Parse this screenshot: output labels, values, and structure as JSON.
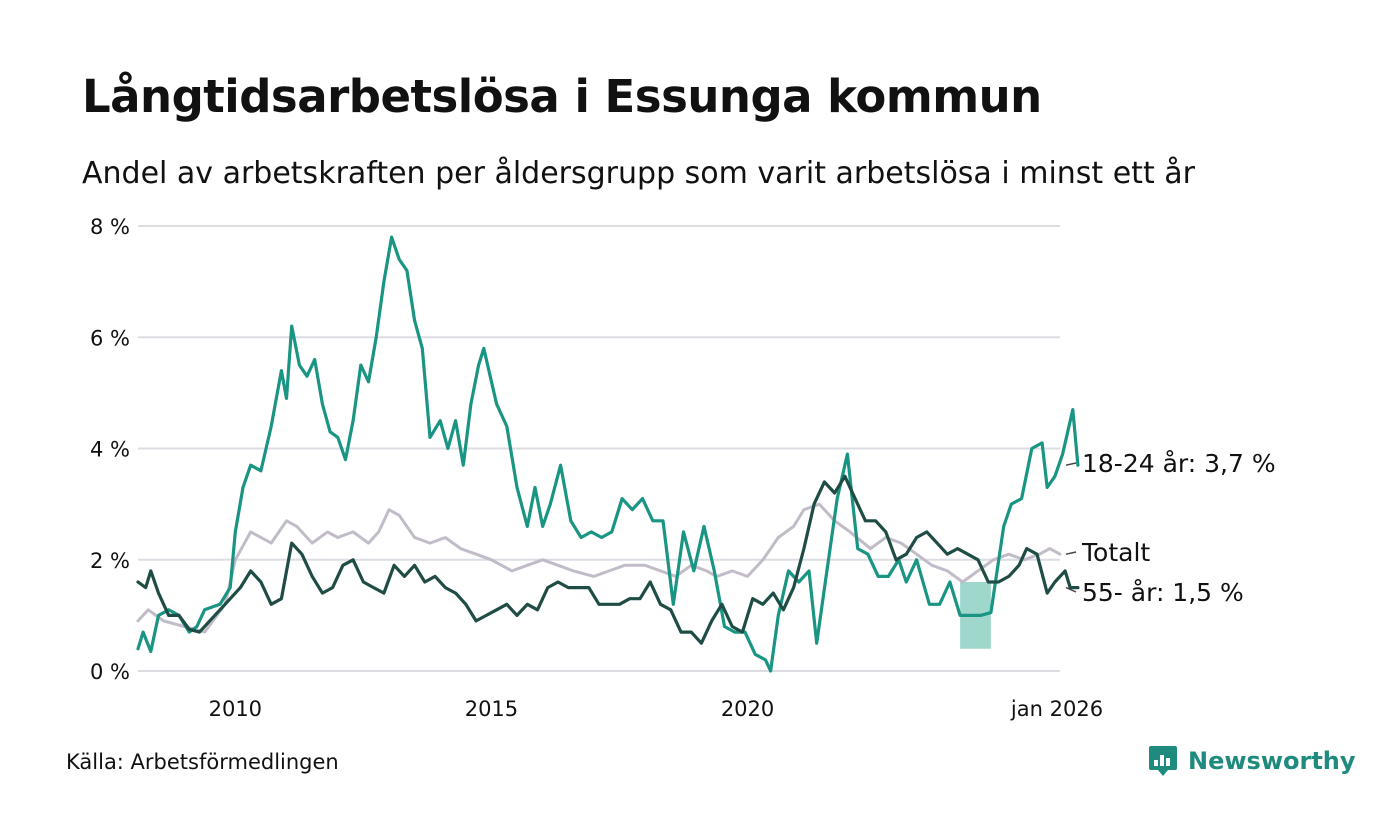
{
  "title": "Långtidsarbetslösa i Essunga kommun",
  "subtitle": "Andel av arbetskraften per åldersgrupp som varit arbetslösa i minst ett år",
  "source": "Källa: Arbetsförmedlingen",
  "brand": "Newsworthy",
  "colors": {
    "young": "#1a9583",
    "total": "#c2bcc8",
    "old": "#1f4d45",
    "band": "#8fd0c4",
    "grid": "#dcdde3",
    "brand": "#1f8a7e"
  },
  "chart_data": {
    "type": "line",
    "x_unit": "year",
    "x_range": [
      2008.1,
      2026.1
    ],
    "ylim": [
      0,
      8
    ],
    "y_ticks": [
      0,
      2,
      4,
      6,
      8
    ],
    "y_tick_labels": [
      "0 %",
      "2 %",
      "4 %",
      "6 %",
      "8 %"
    ],
    "x_ticks": [
      2010,
      2015,
      2020,
      2026
    ],
    "x_tick_labels": [
      "2010",
      "2015",
      "2020",
      "jan 2026"
    ],
    "series": [
      {
        "key": "total",
        "name": "Totalt",
        "label": "Totalt",
        "color": "#c2bcc8",
        "points": [
          [
            2008.1,
            0.9
          ],
          [
            2008.3,
            1.1
          ],
          [
            2008.6,
            0.9
          ],
          [
            2009.0,
            0.8
          ],
          [
            2009.4,
            0.7
          ],
          [
            2009.8,
            1.2
          ],
          [
            2010.0,
            2.0
          ],
          [
            2010.3,
            2.5
          ],
          [
            2010.7,
            2.3
          ],
          [
            2011.0,
            2.7
          ],
          [
            2011.2,
            2.6
          ],
          [
            2011.5,
            2.3
          ],
          [
            2011.8,
            2.5
          ],
          [
            2012.0,
            2.4
          ],
          [
            2012.3,
            2.5
          ],
          [
            2012.6,
            2.3
          ],
          [
            2012.8,
            2.5
          ],
          [
            2013.0,
            2.9
          ],
          [
            2013.2,
            2.8
          ],
          [
            2013.5,
            2.4
          ],
          [
            2013.8,
            2.3
          ],
          [
            2014.1,
            2.4
          ],
          [
            2014.4,
            2.2
          ],
          [
            2014.7,
            2.1
          ],
          [
            2015.0,
            2.0
          ],
          [
            2015.4,
            1.8
          ],
          [
            2015.7,
            1.9
          ],
          [
            2016.0,
            2.0
          ],
          [
            2016.3,
            1.9
          ],
          [
            2016.6,
            1.8
          ],
          [
            2017.0,
            1.7
          ],
          [
            2017.3,
            1.8
          ],
          [
            2017.6,
            1.9
          ],
          [
            2018.0,
            1.9
          ],
          [
            2018.3,
            1.8
          ],
          [
            2018.6,
            1.7
          ],
          [
            2018.9,
            1.9
          ],
          [
            2019.2,
            1.8
          ],
          [
            2019.4,
            1.7
          ],
          [
            2019.7,
            1.8
          ],
          [
            2020.0,
            1.7
          ],
          [
            2020.3,
            2.0
          ],
          [
            2020.6,
            2.4
          ],
          [
            2020.9,
            2.6
          ],
          [
            2021.1,
            2.9
          ],
          [
            2021.4,
            3.0
          ],
          [
            2021.7,
            2.7
          ],
          [
            2022.0,
            2.5
          ],
          [
            2022.4,
            2.2
          ],
          [
            2022.7,
            2.4
          ],
          [
            2023.0,
            2.3
          ],
          [
            2023.3,
            2.1
          ],
          [
            2023.6,
            1.9
          ],
          [
            2023.9,
            1.8
          ],
          [
            2024.2,
            1.6
          ],
          [
            2024.5,
            1.8
          ],
          [
            2024.8,
            2.0
          ],
          [
            2025.1,
            2.1
          ],
          [
            2025.4,
            2.0
          ],
          [
            2025.7,
            2.1
          ],
          [
            2025.9,
            2.2
          ],
          [
            2026.1,
            2.1
          ]
        ]
      },
      {
        "key": "young",
        "name": "18-24 år",
        "label": "18-24 år: 3,7 %",
        "color": "#1a9583",
        "points": [
          [
            2008.1,
            0.4
          ],
          [
            2008.2,
            0.7
          ],
          [
            2008.35,
            0.35
          ],
          [
            2008.5,
            1.0
          ],
          [
            2008.7,
            1.1
          ],
          [
            2008.9,
            1.0
          ],
          [
            2009.1,
            0.7
          ],
          [
            2009.25,
            0.8
          ],
          [
            2009.4,
            1.1
          ],
          [
            2009.7,
            1.2
          ],
          [
            2009.9,
            1.5
          ],
          [
            2010.0,
            2.5
          ],
          [
            2010.15,
            3.3
          ],
          [
            2010.3,
            3.7
          ],
          [
            2010.5,
            3.6
          ],
          [
            2010.7,
            4.4
          ],
          [
            2010.9,
            5.4
          ],
          [
            2011.0,
            4.9
          ],
          [
            2011.1,
            6.2
          ],
          [
            2011.25,
            5.5
          ],
          [
            2011.4,
            5.3
          ],
          [
            2011.55,
            5.6
          ],
          [
            2011.7,
            4.8
          ],
          [
            2011.85,
            4.3
          ],
          [
            2012.0,
            4.2
          ],
          [
            2012.15,
            3.8
          ],
          [
            2012.3,
            4.5
          ],
          [
            2012.45,
            5.5
          ],
          [
            2012.6,
            5.2
          ],
          [
            2012.75,
            6.0
          ],
          [
            2012.9,
            7.0
          ],
          [
            2013.05,
            7.8
          ],
          [
            2013.2,
            7.4
          ],
          [
            2013.35,
            7.2
          ],
          [
            2013.5,
            6.3
          ],
          [
            2013.65,
            5.8
          ],
          [
            2013.8,
            4.2
          ],
          [
            2014.0,
            4.5
          ],
          [
            2014.15,
            4.0
          ],
          [
            2014.3,
            4.5
          ],
          [
            2014.45,
            3.7
          ],
          [
            2014.6,
            4.8
          ],
          [
            2014.75,
            5.5
          ],
          [
            2014.85,
            5.8
          ],
          [
            2014.95,
            5.4
          ],
          [
            2015.1,
            4.8
          ],
          [
            2015.3,
            4.4
          ],
          [
            2015.5,
            3.3
          ],
          [
            2015.7,
            2.6
          ],
          [
            2015.85,
            3.3
          ],
          [
            2016.0,
            2.6
          ],
          [
            2016.15,
            3.0
          ],
          [
            2016.35,
            3.7
          ],
          [
            2016.55,
            2.7
          ],
          [
            2016.75,
            2.4
          ],
          [
            2016.95,
            2.5
          ],
          [
            2017.15,
            2.4
          ],
          [
            2017.35,
            2.5
          ],
          [
            2017.55,
            3.1
          ],
          [
            2017.75,
            2.9
          ],
          [
            2017.95,
            3.1
          ],
          [
            2018.15,
            2.7
          ],
          [
            2018.35,
            2.7
          ],
          [
            2018.55,
            1.2
          ],
          [
            2018.75,
            2.5
          ],
          [
            2018.95,
            1.8
          ],
          [
            2019.15,
            2.6
          ],
          [
            2019.35,
            1.8
          ],
          [
            2019.55,
            0.8
          ],
          [
            2019.75,
            0.7
          ],
          [
            2019.95,
            0.7
          ],
          [
            2020.15,
            0.3
          ],
          [
            2020.35,
            0.2
          ],
          [
            2020.45,
            0.0
          ],
          [
            2020.6,
            1.0
          ],
          [
            2020.8,
            1.8
          ],
          [
            2021.0,
            1.6
          ],
          [
            2021.2,
            1.8
          ],
          [
            2021.35,
            0.5
          ],
          [
            2021.55,
            1.8
          ],
          [
            2021.75,
            3.1
          ],
          [
            2021.95,
            3.9
          ],
          [
            2022.15,
            2.2
          ],
          [
            2022.35,
            2.1
          ],
          [
            2022.55,
            1.7
          ],
          [
            2022.75,
            1.7
          ],
          [
            2022.95,
            2.0
          ],
          [
            2023.1,
            1.6
          ],
          [
            2023.3,
            2.0
          ],
          [
            2023.55,
            1.2
          ],
          [
            2023.75,
            1.2
          ],
          [
            2023.95,
            1.6
          ],
          [
            2024.15,
            1.0
          ],
          [
            2024.35,
            1.0
          ],
          [
            2024.55,
            1.0
          ],
          [
            2024.75,
            1.05
          ],
          [
            2025.0,
            2.6
          ],
          [
            2025.15,
            3.0
          ],
          [
            2025.35,
            3.1
          ],
          [
            2025.55,
            4.0
          ],
          [
            2025.75,
            4.1
          ],
          [
            2025.85,
            3.3
          ],
          [
            2026.0,
            3.5
          ],
          [
            2026.15,
            3.9
          ],
          [
            2026.35,
            4.7
          ],
          [
            2026.45,
            3.7
          ]
        ]
      },
      {
        "key": "old",
        "name": "55- år",
        "label": "55- år: 1,5 %",
        "color": "#1f4d45",
        "points": [
          [
            2008.1,
            1.6
          ],
          [
            2008.25,
            1.5
          ],
          [
            2008.35,
            1.8
          ],
          [
            2008.5,
            1.4
          ],
          [
            2008.7,
            1.0
          ],
          [
            2008.9,
            1.0
          ],
          [
            2009.1,
            0.75
          ],
          [
            2009.3,
            0.7
          ],
          [
            2009.5,
            0.9
          ],
          [
            2009.7,
            1.1
          ],
          [
            2009.9,
            1.3
          ],
          [
            2010.1,
            1.5
          ],
          [
            2010.3,
            1.8
          ],
          [
            2010.5,
            1.6
          ],
          [
            2010.7,
            1.2
          ],
          [
            2010.9,
            1.3
          ],
          [
            2011.1,
            2.3
          ],
          [
            2011.3,
            2.1
          ],
          [
            2011.5,
            1.7
          ],
          [
            2011.7,
            1.4
          ],
          [
            2011.9,
            1.5
          ],
          [
            2012.1,
            1.9
          ],
          [
            2012.3,
            2.0
          ],
          [
            2012.5,
            1.6
          ],
          [
            2012.7,
            1.5
          ],
          [
            2012.9,
            1.4
          ],
          [
            2013.1,
            1.9
          ],
          [
            2013.3,
            1.7
          ],
          [
            2013.5,
            1.9
          ],
          [
            2013.7,
            1.6
          ],
          [
            2013.9,
            1.7
          ],
          [
            2014.1,
            1.5
          ],
          [
            2014.3,
            1.4
          ],
          [
            2014.5,
            1.2
          ],
          [
            2014.7,
            0.9
          ],
          [
            2014.9,
            1.0
          ],
          [
            2015.1,
            1.1
          ],
          [
            2015.3,
            1.2
          ],
          [
            2015.5,
            1.0
          ],
          [
            2015.7,
            1.2
          ],
          [
            2015.9,
            1.1
          ],
          [
            2016.1,
            1.5
          ],
          [
            2016.3,
            1.6
          ],
          [
            2016.5,
            1.5
          ],
          [
            2016.7,
            1.5
          ],
          [
            2016.9,
            1.5
          ],
          [
            2017.1,
            1.2
          ],
          [
            2017.3,
            1.2
          ],
          [
            2017.5,
            1.2
          ],
          [
            2017.7,
            1.3
          ],
          [
            2017.9,
            1.3
          ],
          [
            2018.1,
            1.6
          ],
          [
            2018.3,
            1.2
          ],
          [
            2018.5,
            1.1
          ],
          [
            2018.7,
            0.7
          ],
          [
            2018.9,
            0.7
          ],
          [
            2019.1,
            0.5
          ],
          [
            2019.3,
            0.9
          ],
          [
            2019.5,
            1.2
          ],
          [
            2019.7,
            0.8
          ],
          [
            2019.9,
            0.7
          ],
          [
            2020.1,
            1.3
          ],
          [
            2020.3,
            1.2
          ],
          [
            2020.5,
            1.4
          ],
          [
            2020.7,
            1.1
          ],
          [
            2020.9,
            1.5
          ],
          [
            2021.1,
            2.2
          ],
          [
            2021.3,
            3.0
          ],
          [
            2021.5,
            3.4
          ],
          [
            2021.7,
            3.2
          ],
          [
            2021.9,
            3.5
          ],
          [
            2022.1,
            3.1
          ],
          [
            2022.3,
            2.7
          ],
          [
            2022.5,
            2.7
          ],
          [
            2022.7,
            2.5
          ],
          [
            2022.9,
            2.0
          ],
          [
            2023.1,
            2.1
          ],
          [
            2023.3,
            2.4
          ],
          [
            2023.5,
            2.5
          ],
          [
            2023.7,
            2.3
          ],
          [
            2023.9,
            2.1
          ],
          [
            2024.1,
            2.2
          ],
          [
            2024.3,
            2.1
          ],
          [
            2024.5,
            2.0
          ],
          [
            2024.7,
            1.6
          ],
          [
            2024.9,
            1.6
          ],
          [
            2025.1,
            1.7
          ],
          [
            2025.3,
            1.9
          ],
          [
            2025.45,
            2.2
          ],
          [
            2025.65,
            2.1
          ],
          [
            2025.85,
            1.4
          ],
          [
            2026.0,
            1.6
          ],
          [
            2026.2,
            1.8
          ],
          [
            2026.3,
            1.5
          ],
          [
            2026.45,
            1.5
          ]
        ]
      }
    ],
    "band": {
      "name": "18-24 år osäkerhetsintervall",
      "x": [
        2024.15,
        2024.75
      ],
      "low": 0.4,
      "high": 1.6
    }
  }
}
